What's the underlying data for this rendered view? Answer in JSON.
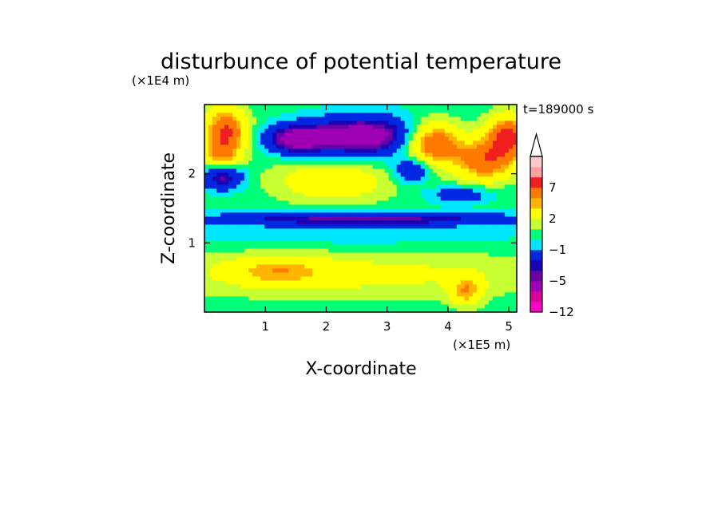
{
  "chart_data": {
    "type": "heatmap",
    "title": "disturbunce of potential temperature",
    "time_label": "t=189000 s",
    "xlabel": "X-coordinate",
    "ylabel": "Z-coordinate",
    "x_unit": "(×1E5 m)",
    "y_unit": "(×1E4 m)",
    "xlim": [
      0,
      5.13
    ],
    "ylim": [
      0,
      3.0
    ],
    "x_ticks": [
      1,
      2,
      3,
      4,
      5
    ],
    "y_ticks": [
      1,
      2
    ],
    "colorbar": {
      "levels": [
        -12,
        -10,
        -8,
        -5,
        -4,
        -3,
        -1,
        0,
        1,
        2,
        4,
        5,
        7,
        9,
        11
      ],
      "colors": [
        "#ff00c8",
        "#d8009a",
        "#a000b4",
        "#6a00a6",
        "#1c00b4",
        "#0028e0",
        "#00e6ff",
        "#00ff78",
        "#c8ff32",
        "#ffff00",
        "#ffb400",
        "#ff7800",
        "#f01e1e",
        "#ffa0a0",
        "#ffc8c8"
      ],
      "extend": "max",
      "labeled_ticks": [
        {
          "level": -12,
          "label": "−12"
        },
        {
          "level": -5,
          "label": "−5"
        },
        {
          "level": -1,
          "label": "−1"
        },
        {
          "level": 2,
          "label": "2"
        },
        {
          "level": 7,
          "label": "7"
        }
      ]
    },
    "features": [
      {
        "x": 2.6,
        "z": 2.55,
        "amp": -7,
        "rx": 0.9,
        "rz": 0.28
      },
      {
        "x": 1.5,
        "z": 2.5,
        "amp": -6,
        "rx": 0.5,
        "rz": 0.2
      },
      {
        "x": 0.35,
        "z": 2.6,
        "amp": 7,
        "rx": 0.35,
        "rz": 0.35
      },
      {
        "x": 0.25,
        "z": 2.25,
        "amp": 3,
        "rx": 0.3,
        "rz": 0.2
      },
      {
        "x": 3.75,
        "z": 2.45,
        "amp": 7,
        "rx": 0.45,
        "rz": 0.3
      },
      {
        "x": 4.6,
        "z": 2.2,
        "amp": 6,
        "rx": 0.5,
        "rz": 0.3
      },
      {
        "x": 5.0,
        "z": 2.55,
        "amp": 7,
        "rx": 0.35,
        "rz": 0.3
      },
      {
        "x": 2.1,
        "z": 1.9,
        "amp": 3,
        "rx": 1.0,
        "rz": 0.3
      },
      {
        "x": 0.3,
        "z": 1.95,
        "amp": -5,
        "rx": 0.35,
        "rz": 0.18
      },
      {
        "x": 3.4,
        "z": 2.05,
        "amp": -4,
        "rx": 0.3,
        "rz": 0.18
      },
      {
        "x": 4.2,
        "z": 1.7,
        "amp": -3,
        "rx": 0.5,
        "rz": 0.12
      },
      {
        "x": 2.6,
        "z": 1.35,
        "amp": -5,
        "rx": 2.5,
        "rz": 0.1
      },
      {
        "x": 2.5,
        "z": 1.1,
        "amp": -1,
        "rx": 3.2,
        "rz": 0.18
      },
      {
        "x": 2.5,
        "z": 0.55,
        "amp": 2,
        "rx": 3.4,
        "rz": 0.35
      },
      {
        "x": 1.2,
        "z": 0.6,
        "amp": 3,
        "rx": 0.8,
        "rz": 0.2
      },
      {
        "x": 4.3,
        "z": 0.3,
        "amp": 4,
        "rx": 0.25,
        "rz": 0.2
      },
      {
        "x": 2.5,
        "z": 0.1,
        "amp": 0,
        "rx": 3.5,
        "rz": 0.1
      }
    ]
  }
}
